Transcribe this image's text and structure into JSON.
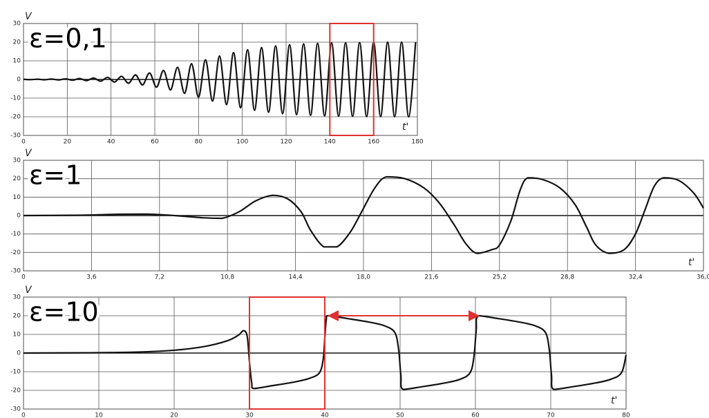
{
  "chart_data": [
    {
      "type": "line",
      "title": "ε=0,1",
      "y_label": "V",
      "x_label": "t'",
      "color": "#111111",
      "grid": true,
      "xlim": [
        0,
        180
      ],
      "ylim": [
        -30,
        30
      ],
      "xticks": [
        0,
        20,
        40,
        60,
        80,
        100,
        120,
        140,
        160,
        180
      ],
      "yticks": [
        30,
        20,
        10,
        0,
        -10,
        -20,
        -30
      ],
      "x": [
        0,
        3.2,
        6.4,
        9.6,
        12.8,
        16,
        19.2,
        22.4,
        25.6,
        28.8,
        32,
        35.2,
        38.4,
        41.6,
        44.8,
        48,
        51.2,
        54.4,
        57.6,
        60.8,
        64,
        67.2,
        70.4,
        73.6,
        76.8,
        80,
        83.2,
        86.4,
        89.6,
        92.8,
        96,
        99.2,
        102.4,
        105.6,
        108.8,
        112,
        115.2,
        118.4,
        121.6,
        124.8,
        128,
        131.2,
        134.4,
        137.6,
        140.8,
        144,
        147.2,
        150.4,
        153.6,
        156.8,
        160,
        163.2,
        166.4,
        169.6,
        172.8,
        176,
        179.2
      ],
      "values": [
        0.1,
        -0.12,
        0.15,
        -0.19,
        0.23,
        -0.28,
        0.34,
        -0.42,
        0.52,
        -0.63,
        0.77,
        -0.94,
        1.14,
        -1.39,
        1.68,
        -2.03,
        2.45,
        -2.93,
        3.49,
        -4.13,
        4.85,
        -5.65,
        6.54,
        -7.49,
        8.47,
        -9.52,
        10.54,
        -11.57,
        12.56,
        -13.51,
        14.39,
        -15.19,
        15.91,
        -16.54,
        17.09,
        -17.57,
        17.99,
        -18.33,
        18.62,
        -18.87,
        19.07,
        -19.23,
        19.38,
        -19.49,
        19.59,
        -19.67,
        19.7,
        -19.8,
        19.8,
        -19.9,
        19.9,
        -19.9,
        20,
        -20,
        20,
        -20,
        20
      ]
    },
    {
      "type": "line",
      "title": "ε=1",
      "y_label": "V",
      "x_label": "t'",
      "color": "#111111",
      "grid": true,
      "xlim": [
        0,
        36
      ],
      "ylim": [
        -30,
        30
      ],
      "xticks": [
        0,
        {
          "value": 3.6,
          "label": "3,6"
        },
        {
          "value": 7.2,
          "label": "7,2"
        },
        {
          "value": 10.8,
          "label": "10,8"
        },
        {
          "value": 14.4,
          "label": "14,4"
        },
        {
          "value": 18,
          "label": "18,0"
        },
        {
          "value": 21.6,
          "label": "21,6"
        },
        {
          "value": 25.2,
          "label": "25,2"
        },
        {
          "value": 28.8,
          "label": "28,8"
        },
        {
          "value": 32.4,
          "label": "32,4"
        },
        {
          "value": 36,
          "label": "36,0"
        }
      ],
      "yticks": [
        30,
        20,
        10,
        0,
        -10,
        -20,
        -30
      ],
      "x": [
        0,
        3,
        5,
        6.5,
        8,
        9.5,
        10.5,
        11.4,
        12.3,
        13.2,
        14,
        14.7,
        15.2,
        15.9,
        16.6,
        17.3,
        17.9,
        18.6,
        19.2,
        20.2,
        21.2,
        22,
        22.8,
        23.4,
        24,
        24.8,
        25.2,
        25.8,
        26.3,
        26.7,
        27.5,
        28.4,
        29.2,
        29.8,
        30.3,
        31,
        31.8,
        32.4,
        32.9,
        33.4,
        33.9,
        34.7,
        35.5,
        36
      ],
      "values": [
        0,
        0.2,
        0.7,
        0.8,
        0,
        -1.2,
        -1.5,
        2,
        8,
        11,
        9,
        2,
        -8,
        -17,
        -17,
        -9,
        2,
        15,
        21,
        20,
        15,
        7,
        -5,
        -15,
        -20.5,
        -18.5,
        -16,
        -3,
        14,
        20.5,
        19.5,
        15,
        6,
        -6,
        -16,
        -20.5,
        -18.5,
        -10,
        3,
        16,
        20.5,
        19,
        12,
        4
      ]
    },
    {
      "type": "line",
      "title": "ε=10",
      "y_label": "V",
      "x_label": "t'",
      "color": "#111111",
      "grid": true,
      "xlim": [
        0,
        80
      ],
      "ylim": [
        -30,
        30
      ],
      "xticks": [
        0,
        10,
        20,
        30,
        40,
        50,
        60,
        70,
        80
      ],
      "yticks": [
        30,
        20,
        10,
        0,
        -10,
        -20,
        -30
      ],
      "x": [
        0,
        10,
        15,
        20,
        24,
        27,
        28.5,
        29.2,
        29.7,
        30,
        30.3,
        30.6,
        33,
        36,
        38,
        39.3,
        39.8,
        40,
        40.2,
        40.5,
        43,
        46,
        48,
        49.3,
        49.8,
        50.1,
        50.4,
        53,
        56,
        58,
        59.3,
        59.8,
        60.1,
        60.4,
        63,
        66,
        68,
        69.3,
        69.8,
        70.1,
        70.4,
        73,
        76,
        78,
        79.4,
        80
      ],
      "values": [
        0,
        0.2,
        0.5,
        1.5,
        3.5,
        6.5,
        9.5,
        12,
        9,
        -5,
        -16,
        -19,
        -17.5,
        -15.5,
        -13.5,
        -10.5,
        -3,
        8,
        18,
        20,
        18.5,
        16.5,
        14.5,
        11,
        2,
        -12,
        -19.5,
        -18,
        -16,
        -14,
        -10.5,
        -2,
        12,
        20,
        18.5,
        16.5,
        14.5,
        11,
        2,
        -12,
        -19.5,
        -18,
        -16,
        -14,
        -10.5,
        -1
      ]
    }
  ]
}
